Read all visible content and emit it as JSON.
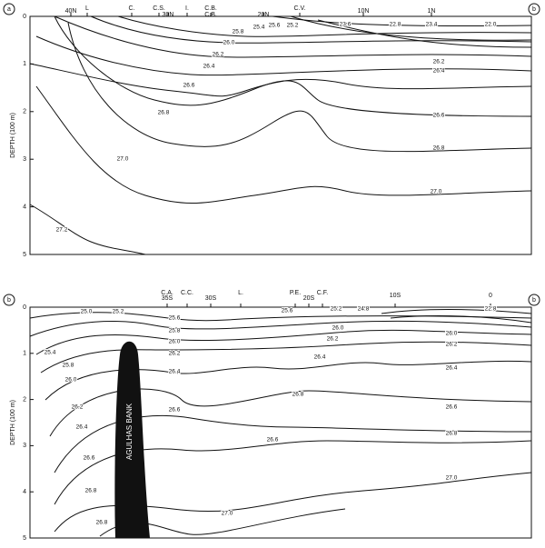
{
  "panels": [
    {
      "corner_left": "a",
      "corner_right": "b",
      "axis_label": "DEPTH (100 m)",
      "depth_ticks": [
        "0",
        "1",
        "2",
        "3",
        "4",
        "5"
      ],
      "top_labels": [
        "40N",
        "L",
        "C.",
        "C.S.",
        "30N",
        "I.",
        "C.B.",
        "C.B.",
        "20N",
        "C.V.",
        "10N",
        "1N"
      ],
      "contour_labels": [
        "25.8",
        "26.0",
        "26.2",
        "26.4",
        "26.6",
        "26.8",
        "27.0",
        "27.2",
        "25.4",
        "25.6",
        "25.2",
        "23.6",
        "22.8",
        "23.4",
        "22.0",
        "26.2",
        "26.4",
        "26.6",
        "26.8",
        "27.0"
      ]
    },
    {
      "corner_left": "b",
      "corner_right": "b",
      "axis_label": "DEPTH (100 m)",
      "depth_ticks": [
        "0",
        "1",
        "2",
        "3",
        "4",
        "5"
      ],
      "top_labels": [
        "C.A.",
        "35S",
        "C.C.",
        "30S",
        "L.",
        "P.E.",
        "20S",
        "C.F.",
        "10S",
        "0"
      ],
      "feature_label": "AGULHAS BANK",
      "contour_labels": [
        "25.0",
        "25.2",
        "25.6",
        "25.8",
        "26.0",
        "26.2",
        "26.4",
        "26.6",
        "26.8",
        "27.0",
        "25.6",
        "26.0",
        "26.2",
        "26.4",
        "26.8",
        "26.6",
        "25.2",
        "24.8",
        "22.8",
        "26.0",
        "26.2",
        "26.4",
        "26.6",
        "26.8",
        "27.0",
        "25.4",
        "25.8",
        "26.0",
        "26.2",
        "26.4",
        "26.6",
        "26.8"
      ]
    }
  ]
}
